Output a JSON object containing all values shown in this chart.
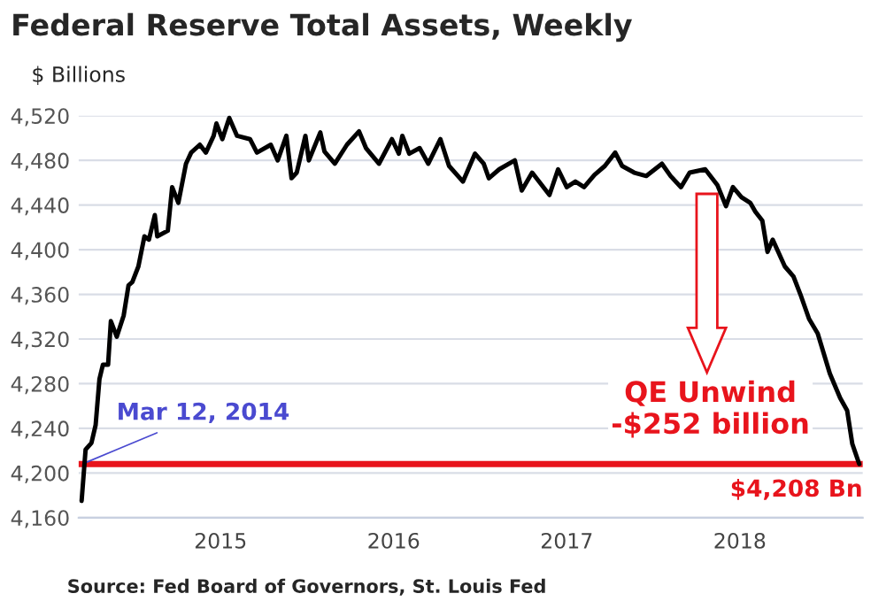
{
  "chart_data": {
    "type": "line",
    "title": "Federal Reserve Total Assets, Weekly",
    "ylabel": "$ Billions",
    "series": [
      {
        "color": "#000000",
        "x": [
          2014.197,
          2014.22,
          2014.254,
          2014.278,
          2014.3,
          2014.32,
          2014.35,
          2014.366,
          2014.4,
          2014.44,
          2014.468,
          2014.49,
          2014.525,
          2014.56,
          2014.586,
          2014.62,
          2014.634,
          2014.695,
          2014.72,
          2014.756,
          2014.8,
          2014.83,
          2014.88,
          2014.915,
          2014.96,
          2014.976,
          2015.01,
          2015.05,
          2015.095,
          2015.17,
          2015.21,
          2015.29,
          2015.33,
          2015.38,
          2015.41,
          2015.44,
          2015.49,
          2015.51,
          2015.576,
          2015.6,
          2015.66,
          2015.73,
          2015.8,
          2015.84,
          2015.915,
          2015.99,
          2016.03,
          2016.05,
          2016.09,
          2016.15,
          2016.2,
          2016.27,
          2016.32,
          2016.4,
          2016.47,
          2016.52,
          2016.55,
          2016.61,
          2016.7,
          2016.74,
          2016.8,
          2016.9,
          2016.95,
          2017.0,
          2017.05,
          2017.1,
          2017.16,
          2017.22,
          2017.28,
          2017.32,
          2017.39,
          2017.46,
          2017.55,
          2017.6,
          2017.66,
          2017.71,
          2017.8,
          2017.87,
          2017.92,
          2017.96,
          2018.01,
          2018.06,
          2018.09,
          2018.13,
          2018.16,
          2018.19,
          2018.26,
          2018.31,
          2018.35,
          2018.4,
          2018.45,
          2018.52,
          2018.58,
          2018.62,
          2018.65,
          2018.69
        ],
        "values": [
          4175,
          4221,
          4227,
          4243,
          4284,
          4297,
          4297,
          4336,
          4322,
          4341,
          4368,
          4371,
          4385,
          4412,
          4409,
          4431,
          4412,
          4417,
          4456,
          4442,
          4477,
          4487,
          4494,
          4487,
          4502,
          4513,
          4499,
          4518,
          4502,
          4499,
          4487,
          4494,
          4480,
          4502,
          4464,
          4469,
          4502,
          4480,
          4505,
          4488,
          4477,
          4494,
          4506,
          4491,
          4477,
          4499,
          4486,
          4502,
          4486,
          4491,
          4477,
          4499,
          4475,
          4461,
          4486,
          4477,
          4464,
          4472,
          4480,
          4453,
          4469,
          4449,
          4472,
          4456,
          4461,
          4456,
          4467,
          4475,
          4487,
          4475,
          4469,
          4466,
          4477,
          4466,
          4456,
          4469,
          4472,
          4458,
          4439,
          4456,
          4447,
          4442,
          4434,
          4426,
          4398,
          4409,
          4385,
          4376,
          4360,
          4338,
          4325,
          4289,
          4267,
          4256,
          4226,
          4208
        ]
      }
    ],
    "xlim": [
      2014.18,
      2018.71
    ],
    "xticks": [
      2015,
      2016,
      2017,
      2018
    ],
    "ylim": [
      4160,
      4520
    ],
    "yticks": [
      {
        "value": 4160,
        "label": "4,160"
      },
      {
        "value": 4200,
        "label": "4,200"
      },
      {
        "value": 4240,
        "label": "4,240"
      },
      {
        "value": 4280,
        "label": "4,280"
      },
      {
        "value": 4320,
        "label": "4,320"
      },
      {
        "value": 4360,
        "label": "4,360"
      },
      {
        "value": 4400,
        "label": "4,400"
      },
      {
        "value": 4440,
        "label": "4,440"
      },
      {
        "value": 4480,
        "label": "4,480"
      },
      {
        "value": 4520,
        "label": "4,520"
      }
    ],
    "grid": "y",
    "legend": false,
    "marker": "none",
    "line_style": "solid",
    "ref_lines": [
      {
        "axis": "y",
        "value": 4208,
        "label": "$4,208 Bn",
        "color": "#e8141c"
      }
    ],
    "annotations": [
      {
        "text": "Mar 12, 2014",
        "x": 2014.2,
        "y": 4208
      },
      {
        "text": "QE Unwind\n-$252 billion",
        "x": 2017.83,
        "y": 4208
      },
      "Source: Fed Board of Governors, St. Louis Fed"
    ]
  }
}
